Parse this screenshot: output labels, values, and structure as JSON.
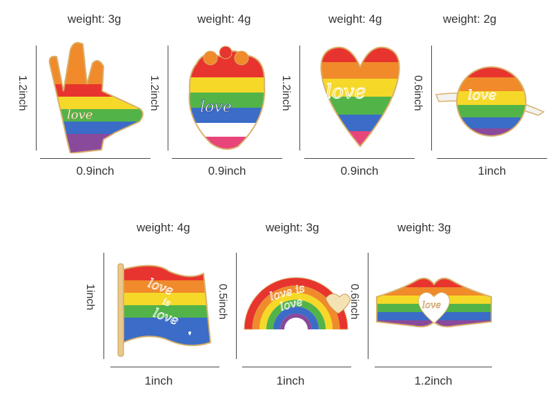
{
  "products": [
    {
      "name": "hand",
      "weight": "weight: 3g",
      "width": "0.9inch",
      "height": "1.2inch",
      "text": "love",
      "colors": [
        "#e8342f",
        "#f08a2a",
        "#f6d829",
        "#52b448",
        "#3b6cc7",
        "#8a4a9c"
      ]
    },
    {
      "name": "heart-organ",
      "weight": "weight: 4g",
      "width": "0.9inch",
      "height": "1.2inch",
      "text": "love",
      "colors": [
        "#e8342f",
        "#f08a2a",
        "#f6d829",
        "#52b448",
        "#3b6cc7",
        "#8a4a9c"
      ]
    },
    {
      "name": "heart",
      "weight": "weight: 4g",
      "width": "0.9inch",
      "height": "1.2inch",
      "text": "love",
      "colors": [
        "#e8342f",
        "#f08a2a",
        "#f6d829",
        "#52b448",
        "#3b6cc7",
        "#8a4a9c"
      ]
    },
    {
      "name": "planet",
      "weight": "weight: 2g",
      "width": "1inch",
      "height": "0.6inch",
      "text": "love",
      "colors": [
        "#e8342f",
        "#f08a2a",
        "#f6d829",
        "#52b448",
        "#3b6cc7",
        "#8a4a9c"
      ]
    },
    {
      "name": "flag",
      "weight": "weight: 4g",
      "width": "1inch",
      "height": "1inch",
      "text1": "love",
      "text2": "is",
      "text3": "love",
      "colors": [
        "#e8342f",
        "#f08a2a",
        "#f6d829",
        "#52b448",
        "#3b6cc7",
        "#8a4a9c"
      ]
    },
    {
      "name": "rainbow",
      "weight": "weight: 3g",
      "width": "1inch",
      "height": "0.5inch",
      "text1": "love is",
      "text2": "love",
      "colors": [
        "#e8342f",
        "#f08a2a",
        "#f6d829",
        "#52b448",
        "#3b6cc7",
        "#8a4a9c"
      ]
    },
    {
      "name": "heart-hands",
      "weight": "weight: 3g",
      "width": "1.2inch",
      "height": "0.6inch",
      "text": "love",
      "colors": [
        "#e8342f",
        "#f08a2a",
        "#f6d829",
        "#52b448",
        "#3b6cc7",
        "#8a4a9c"
      ]
    }
  ]
}
